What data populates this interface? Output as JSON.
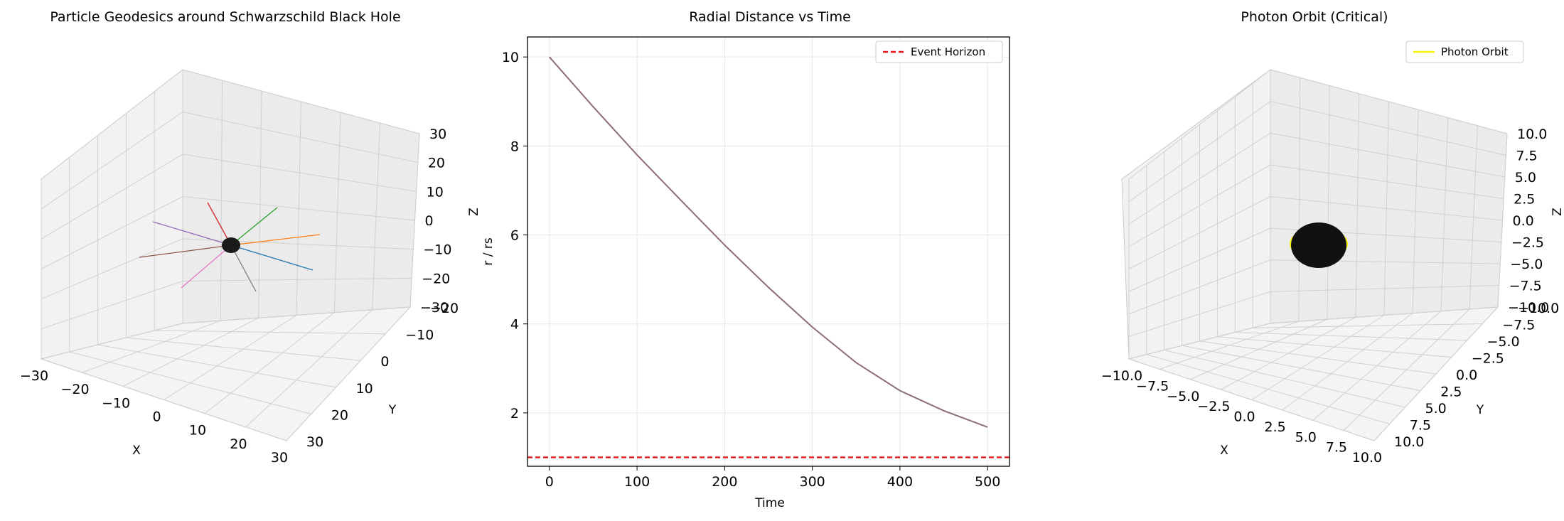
{
  "chart_data": [
    {
      "type": "line3d",
      "title": "Particle Geodesics around Schwarzschild Black Hole",
      "xlabel": "X",
      "ylabel": "Y",
      "zlabel": "Z",
      "xlim": [
        -30,
        30
      ],
      "ylim": [
        -30,
        30
      ],
      "zlim": [
        -30,
        30
      ],
      "xticks": [
        "−30",
        "−20",
        "−10",
        "0",
        "10",
        "20",
        "30"
      ],
      "yticks": [
        "−20",
        "−10",
        "0",
        "10",
        "20",
        "30"
      ],
      "zticks": [
        "−30",
        "−20",
        "−10",
        "0",
        "10",
        "20",
        "30"
      ],
      "grid": true,
      "colors": [
        "#1f77b4",
        "#ff7f0e",
        "#2ca02c",
        "#d62728",
        "#9467bd",
        "#8c564b",
        "#e377c2",
        "#7f7f7f"
      ],
      "black_hole_color": "#1a1a1a"
    },
    {
      "type": "line",
      "title": "Radial Distance vs Time",
      "xlabel": "Time",
      "ylabel": "r / rs",
      "xlim": [
        -25,
        525
      ],
      "ylim": [
        0.8,
        10.45
      ],
      "xticks": [
        0,
        100,
        200,
        300,
        400,
        500
      ],
      "yticks": [
        2,
        4,
        6,
        8,
        10
      ],
      "grid": true,
      "legend_position": "top-right",
      "series": [
        {
          "color": "#8c6f75",
          "x": [
            0,
            50,
            100,
            150,
            200,
            250,
            300,
            350,
            400,
            450,
            500
          ],
          "y": [
            10.0,
            8.88,
            7.8,
            6.78,
            5.77,
            4.82,
            3.93,
            3.13,
            2.5,
            2.05,
            1.68
          ]
        }
      ],
      "hline": {
        "name": "Event Horizon",
        "y": 1.0,
        "color": "#e31a1c",
        "style": "dashed"
      }
    },
    {
      "type": "line3d",
      "title": "Photon Orbit (Critical)",
      "xlabel": "X",
      "ylabel": "Y",
      "zlabel": "Z",
      "xlim": [
        -10,
        10
      ],
      "ylim": [
        -10,
        10
      ],
      "zlim": [
        -10,
        10
      ],
      "xticks": [
        "−10.0",
        "−7.5",
        "−5.0",
        "−2.5",
        "0.0",
        "2.5",
        "5.0",
        "7.5",
        "10.0"
      ],
      "yticks": [
        "−10.0",
        "−7.5",
        "−5.0",
        "−2.5",
        "0.0",
        "2.5",
        "5.0",
        "7.5",
        "10.0"
      ],
      "zticks": [
        "−10.0",
        "−7.5",
        "−5.0",
        "−2.5",
        "0.0",
        "2.5",
        "5.0",
        "7.5",
        "10.0"
      ],
      "grid": true,
      "legend_position": "top-right",
      "series": [
        {
          "name": "Photon Orbit",
          "color": "#f5f50a",
          "radius": 1.5
        }
      ],
      "black_hole_color": "#111111"
    }
  ]
}
